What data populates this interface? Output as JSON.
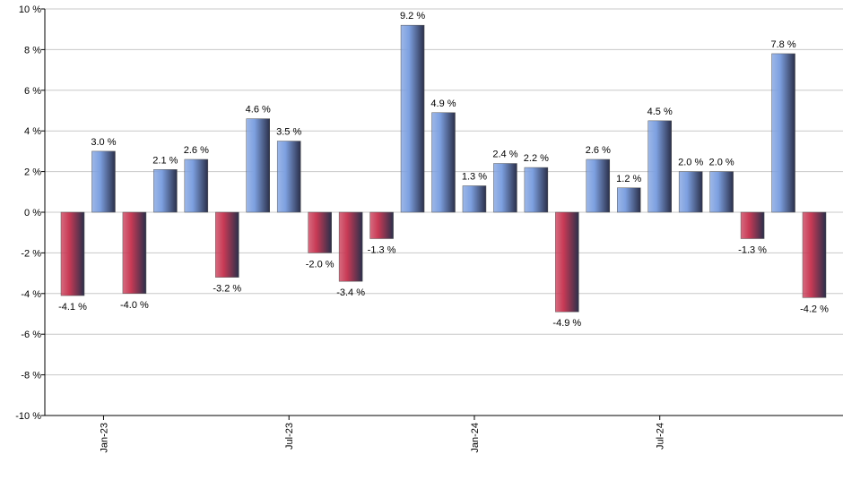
{
  "chart_data": {
    "type": "bar",
    "categories": [
      null,
      "Jan-23",
      null,
      null,
      null,
      null,
      null,
      "Jul-23",
      null,
      null,
      null,
      null,
      null,
      "Jan-24",
      null,
      null,
      null,
      null,
      null,
      "Jul-24",
      null,
      null,
      null,
      null,
      null
    ],
    "values": [
      -4.1,
      3.0,
      -4.0,
      2.1,
      2.6,
      -3.2,
      4.6,
      3.5,
      -2.0,
      -3.4,
      -1.3,
      9.2,
      4.9,
      1.3,
      2.4,
      2.2,
      -4.9,
      2.6,
      1.2,
      4.5,
      2.0,
      2.0,
      -1.3,
      7.8,
      -4.2
    ],
    "value_labels": [
      "-4.1 %",
      "3.0 %",
      "-4.0 %",
      "2.1 %",
      "2.6 %",
      "-3.2 %",
      "4.6 %",
      "3.5 %",
      "-2.0 %",
      "-3.4 %",
      "-1.3 %",
      "9.2 %",
      "4.9 %",
      "1.3 %",
      "2.4 %",
      "2.2 %",
      "-4.9 %",
      "2.6 %",
      "1.2 %",
      "4.5 %",
      "2.0 %",
      "2.0 %",
      "-1.3 %",
      "7.8 %",
      "-4.2 %"
    ],
    "positive_color": "#7da0e0",
    "negative_color": "#c83a55",
    "ylim": [
      -10,
      10
    ],
    "yticks": [
      {
        "value": -10,
        "label": "-10 %"
      },
      {
        "value": -8,
        "label": "-8 %"
      },
      {
        "value": -6,
        "label": "-6 %"
      },
      {
        "value": -4,
        "label": "-4 %"
      },
      {
        "value": -2,
        "label": "-2 %"
      },
      {
        "value": 0,
        "label": "0 %"
      },
      {
        "value": 2,
        "label": "2 %"
      },
      {
        "value": 4,
        "label": "4 %"
      },
      {
        "value": 6,
        "label": "6 %"
      },
      {
        "value": 8,
        "label": "8 %"
      },
      {
        "value": 10,
        "label": "10 %"
      }
    ],
    "grid": true
  }
}
